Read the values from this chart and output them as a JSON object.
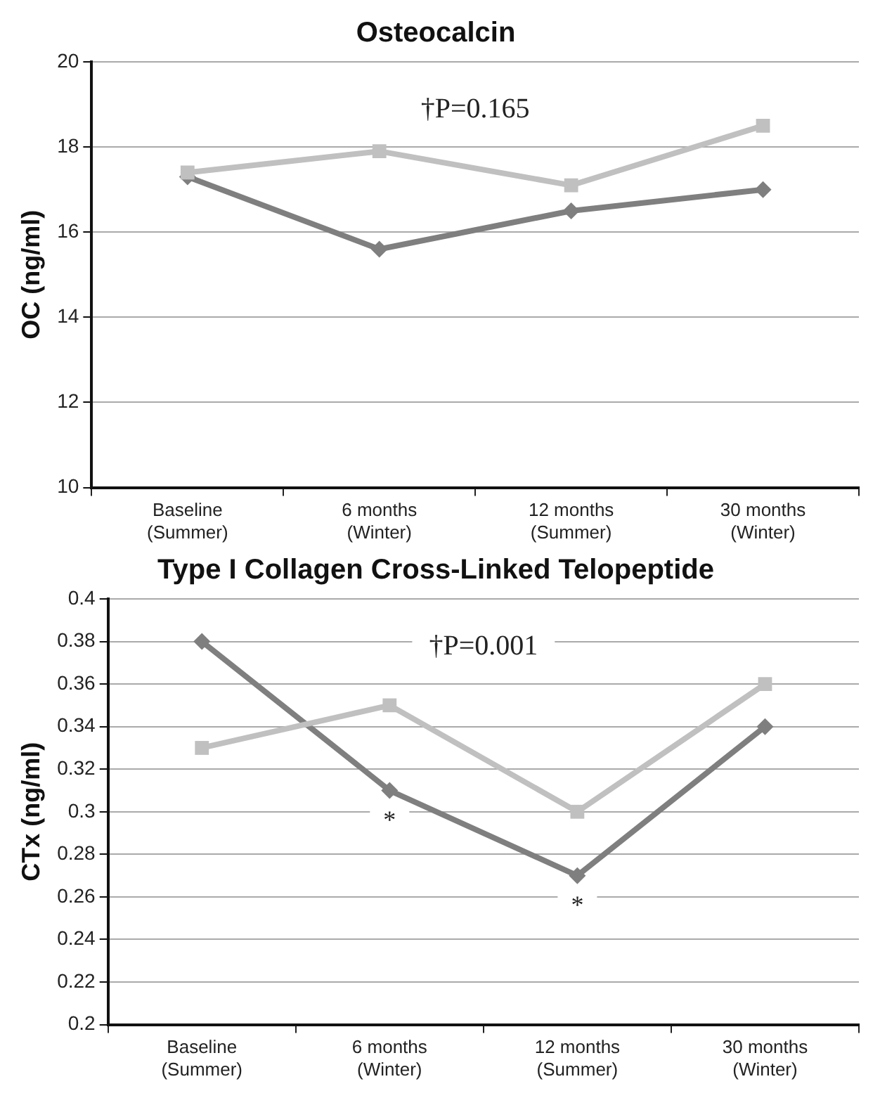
{
  "chart_data": [
    {
      "type": "line",
      "title": "Osteocalcin",
      "ylabel": "OC (ng/ml)",
      "categories": [
        "Baseline (Summer)",
        "6 months (Winter)",
        "12 months (Summer)",
        "30 months (Winter)"
      ],
      "series": [
        {
          "color": "#7f7f7f",
          "marker": "diamond",
          "values": [
            17.3,
            15.6,
            16.5,
            17.0
          ]
        },
        {
          "color": "#c0c0c0",
          "marker": "square",
          "values": [
            17.4,
            17.9,
            17.1,
            18.5
          ]
        }
      ],
      "ylim": [
        10,
        20
      ],
      "yticks": [
        10,
        12,
        14,
        16,
        18,
        20
      ],
      "grid": "y",
      "annotations": [
        "†P=0.165"
      ]
    },
    {
      "type": "line",
      "title": "Type I Collagen Cross-Linked Telopeptide",
      "ylabel": "CTx (ng/ml)",
      "categories": [
        "Baseline (Summer)",
        "6 months (Winter)",
        "12 months (Summer)",
        "30 months (Winter)"
      ],
      "series": [
        {
          "color": "#7f7f7f",
          "marker": "diamond",
          "values": [
            0.38,
            0.31,
            0.27,
            0.34
          ]
        },
        {
          "color": "#c0c0c0",
          "marker": "square",
          "values": [
            0.33,
            0.35,
            0.3,
            0.36
          ]
        }
      ],
      "ylim": [
        0.2,
        0.4
      ],
      "yticks": [
        0.2,
        0.22,
        0.24,
        0.26,
        0.28,
        0.3,
        0.32,
        0.34,
        0.36,
        0.38,
        0.4
      ],
      "grid": "y",
      "annotations": [
        "†P=0.001",
        {
          "text": "*",
          "x": "6 months (Winter)",
          "y": 0.31
        },
        {
          "text": "*",
          "x": "12 months (Summer)",
          "y": 0.27
        }
      ]
    }
  ]
}
